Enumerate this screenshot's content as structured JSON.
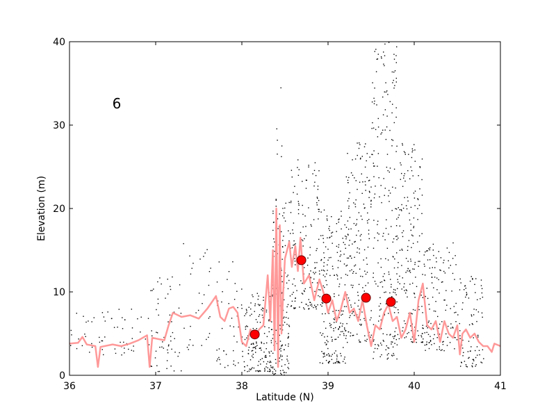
{
  "chart_data": {
    "type": "scatter",
    "panel_label": "6",
    "xlabel": "Latitude (N)",
    "ylabel": "Elevation (m)",
    "xlim": [
      36,
      41
    ],
    "ylim": [
      0,
      40
    ],
    "x_ticks": [
      36,
      37,
      38,
      39,
      40,
      41
    ],
    "y_ticks": [
      0,
      10,
      20,
      30,
      40
    ],
    "grid": false,
    "colors": {
      "points": "#000000",
      "line": "#ff9999",
      "markers": "#ff0000",
      "marker_edge": "#660000"
    },
    "series": [
      {
        "kind": "scatter-points",
        "density_regions": [
          [
            36.0,
            36.9,
            2.5,
            8.0,
            60
          ],
          [
            36.9,
            37.3,
            0.5,
            12.0,
            60
          ],
          [
            37.3,
            37.7,
            3.0,
            16.0,
            30
          ],
          [
            37.7,
            38.0,
            1.0,
            14.0,
            45
          ],
          [
            38.0,
            38.35,
            0.5,
            10.0,
            160
          ],
          [
            38.35,
            38.55,
            0.0,
            22.0,
            170
          ],
          [
            38.4,
            38.48,
            26.0,
            35.0,
            6
          ],
          [
            38.55,
            38.9,
            8.0,
            26.0,
            160
          ],
          [
            38.9,
            39.2,
            1.5,
            20.0,
            200
          ],
          [
            39.2,
            39.5,
            4.0,
            28.0,
            190
          ],
          [
            39.5,
            39.8,
            2.0,
            40.0,
            230
          ],
          [
            39.8,
            40.1,
            4.0,
            28.0,
            180
          ],
          [
            40.1,
            40.5,
            3.0,
            16.0,
            130
          ],
          [
            40.5,
            40.8,
            1.0,
            12.0,
            90
          ]
        ]
      },
      {
        "kind": "line",
        "points": [
          [
            36.0,
            3.8
          ],
          [
            36.1,
            3.9
          ],
          [
            36.15,
            4.6
          ],
          [
            36.2,
            3.7
          ],
          [
            36.3,
            3.5
          ],
          [
            36.33,
            1.0
          ],
          [
            36.36,
            3.4
          ],
          [
            36.5,
            3.7
          ],
          [
            36.6,
            3.5
          ],
          [
            36.7,
            3.8
          ],
          [
            36.8,
            4.2
          ],
          [
            36.9,
            4.8
          ],
          [
            36.93,
            1.0
          ],
          [
            36.96,
            4.5
          ],
          [
            37.1,
            4.2
          ],
          [
            37.15,
            6.0
          ],
          [
            37.2,
            7.5
          ],
          [
            37.3,
            7.0
          ],
          [
            37.4,
            7.2
          ],
          [
            37.5,
            6.8
          ],
          [
            37.6,
            8.0
          ],
          [
            37.7,
            9.5
          ],
          [
            37.75,
            7.0
          ],
          [
            37.8,
            6.5
          ],
          [
            37.85,
            8.0
          ],
          [
            37.9,
            8.2
          ],
          [
            37.95,
            7.5
          ],
          [
            38.0,
            4.0
          ],
          [
            38.05,
            3.5
          ],
          [
            38.1,
            5.5
          ],
          [
            38.15,
            4.5
          ],
          [
            38.2,
            5.5
          ],
          [
            38.25,
            6.0
          ],
          [
            38.3,
            12.0
          ],
          [
            38.33,
            6.5
          ],
          [
            38.36,
            15.0
          ],
          [
            38.38,
            3.0
          ],
          [
            38.4,
            20.0
          ],
          [
            38.42,
            1.0
          ],
          [
            38.44,
            18.0
          ],
          [
            38.46,
            5.0
          ],
          [
            38.48,
            10.0
          ],
          [
            38.5,
            14.0
          ],
          [
            38.55,
            16.0
          ],
          [
            38.58,
            13.0
          ],
          [
            38.62,
            15.5
          ],
          [
            38.65,
            12.5
          ],
          [
            38.68,
            16.5
          ],
          [
            38.72,
            11.0
          ],
          [
            38.78,
            12.0
          ],
          [
            38.84,
            9.0
          ],
          [
            38.9,
            11.5
          ],
          [
            38.96,
            9.5
          ],
          [
            39.0,
            7.5
          ],
          [
            39.05,
            9.0
          ],
          [
            39.1,
            6.5
          ],
          [
            39.15,
            8.0
          ],
          [
            39.2,
            10.0
          ],
          [
            39.25,
            7.5
          ],
          [
            39.3,
            8.0
          ],
          [
            39.35,
            6.5
          ],
          [
            39.4,
            9.0
          ],
          [
            39.45,
            6.0
          ],
          [
            39.5,
            3.5
          ],
          [
            39.55,
            6.0
          ],
          [
            39.6,
            5.5
          ],
          [
            39.65,
            7.5
          ],
          [
            39.7,
            8.5
          ],
          [
            39.75,
            6.5
          ],
          [
            39.8,
            7.0
          ],
          [
            39.85,
            4.5
          ],
          [
            39.9,
            5.5
          ],
          [
            39.95,
            7.5
          ],
          [
            40.0,
            4.0
          ],
          [
            40.05,
            9.0
          ],
          [
            40.1,
            11.0
          ],
          [
            40.15,
            6.0
          ],
          [
            40.2,
            5.5
          ],
          [
            40.25,
            6.5
          ],
          [
            40.3,
            4.0
          ],
          [
            40.35,
            6.5
          ],
          [
            40.4,
            5.0
          ],
          [
            40.45,
            4.5
          ],
          [
            40.5,
            6.0
          ],
          [
            40.53,
            2.5
          ],
          [
            40.56,
            5.0
          ],
          [
            40.6,
            5.5
          ],
          [
            40.65,
            4.5
          ],
          [
            40.7,
            5.0
          ],
          [
            40.75,
            4.0
          ],
          [
            40.8,
            3.5
          ],
          [
            40.85,
            3.5
          ],
          [
            40.9,
            2.8
          ],
          [
            40.93,
            3.8
          ],
          [
            41.0,
            3.5
          ]
        ]
      },
      {
        "kind": "markers",
        "points": [
          [
            38.15,
            4.9
          ],
          [
            38.69,
            13.8
          ],
          [
            38.98,
            9.2
          ],
          [
            39.44,
            9.3
          ],
          [
            39.73,
            8.8
          ]
        ]
      }
    ]
  }
}
